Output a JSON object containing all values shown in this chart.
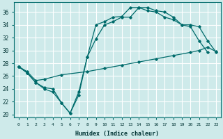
{
  "xlabel": "Humidex (Indice chaleur)",
  "bg_color": "#ceeaea",
  "grid_color": "#ffffff",
  "line_color": "#006b6b",
  "xlim": [
    -0.5,
    23.5
  ],
  "ylim": [
    19.5,
    37.5
  ],
  "yticks": [
    20,
    22,
    24,
    26,
    28,
    30,
    32,
    34,
    36
  ],
  "xticks": [
    0,
    1,
    2,
    3,
    4,
    5,
    6,
    7,
    8,
    9,
    10,
    11,
    12,
    13,
    14,
    15,
    16,
    17,
    18,
    19,
    20,
    21,
    22,
    23
  ],
  "line1_x": [
    0,
    1,
    2,
    3,
    4,
    5,
    6,
    7,
    8,
    9,
    10,
    11,
    12,
    13,
    14,
    15,
    16,
    17,
    18,
    19,
    20,
    21,
    22
  ],
  "line1_y": [
    27.5,
    26.5,
    25.0,
    24.0,
    23.5,
    21.8,
    20.2,
    23.0,
    29.0,
    34.0,
    34.5,
    35.2,
    35.3,
    36.7,
    36.7,
    36.2,
    36.0,
    35.2,
    34.8,
    34.0,
    33.7,
    31.5,
    29.7
  ],
  "line2_x": [
    0,
    1,
    2,
    3,
    5,
    8,
    10,
    12,
    14,
    16,
    18,
    20,
    21,
    22,
    23
  ],
  "line2_y": [
    27.5,
    26.7,
    25.3,
    25.5,
    26.2,
    26.7,
    27.2,
    27.7,
    28.2,
    28.7,
    29.2,
    29.7,
    30.0,
    30.5,
    29.8
  ],
  "line3_x": [
    0,
    1,
    2,
    3,
    4,
    5,
    6,
    7,
    8,
    9,
    10,
    11,
    12,
    13,
    14,
    15,
    16,
    17,
    18,
    19,
    20,
    21,
    22,
    23
  ],
  "line3_y": [
    27.5,
    26.5,
    25.0,
    24.2,
    24.0,
    21.8,
    20.2,
    23.5,
    29.0,
    31.8,
    34.0,
    34.5,
    35.2,
    35.2,
    36.7,
    36.7,
    36.2,
    36.0,
    35.2,
    34.0,
    34.0,
    33.7,
    31.5,
    29.7
  ]
}
